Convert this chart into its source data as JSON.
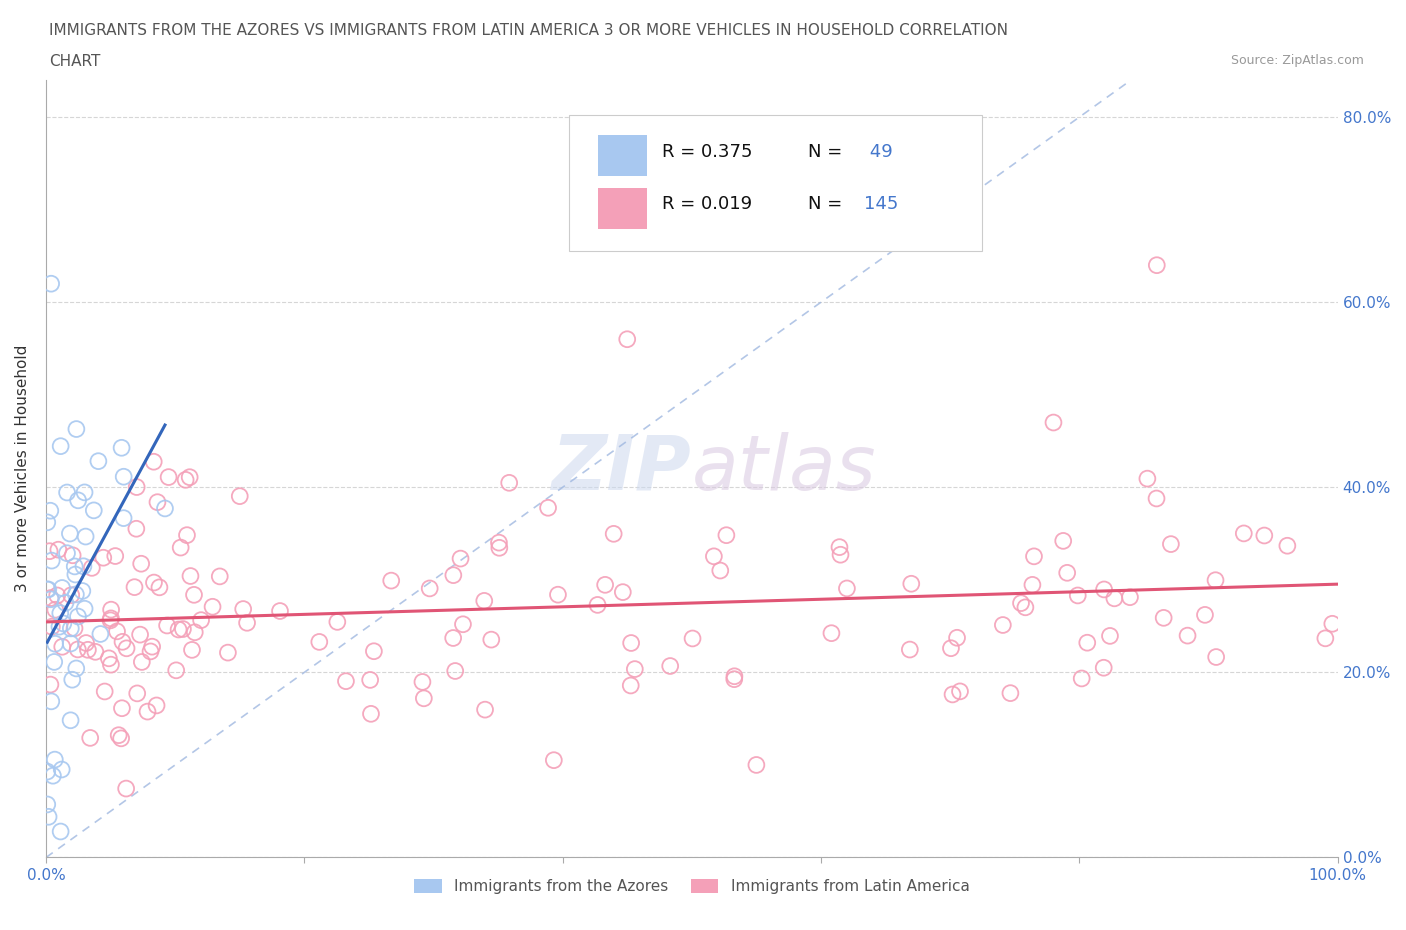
{
  "title_line1": "IMMIGRANTS FROM THE AZORES VS IMMIGRANTS FROM LATIN AMERICA 3 OR MORE VEHICLES IN HOUSEHOLD CORRELATION",
  "title_line2": "CHART",
  "source": "Source: ZipAtlas.com",
  "ylabel": "3 or more Vehicles in Household",
  "x_min": 0.0,
  "x_max": 1.0,
  "y_min": 0.0,
  "y_max": 0.84,
  "x_ticks": [
    0.0,
    0.2,
    0.4,
    0.6,
    0.8,
    1.0
  ],
  "x_tick_labels": [
    "0.0%",
    "",
    "",
    "",
    "",
    "100.0%"
  ],
  "y_ticks": [
    0.0,
    0.2,
    0.4,
    0.6,
    0.8
  ],
  "y_tick_labels_right": [
    "0.0%",
    "20.0%",
    "40.0%",
    "60.0%",
    "80.0%"
  ],
  "color_azores": "#a8c8f0",
  "color_latin": "#f4a0b8",
  "color_azores_line": "#3366bb",
  "color_latin_line": "#e05575",
  "color_diag_line": "#a0b8e0",
  "R_azores": 0.375,
  "N_azores": 49,
  "R_latin": 0.019,
  "N_latin": 145,
  "watermark_zip": "ZIP",
  "watermark_atlas": "atlas",
  "legend_label_azores": "Immigrants from the Azores",
  "legend_label_latin": "Immigrants from Latin America",
  "seed": 12345
}
